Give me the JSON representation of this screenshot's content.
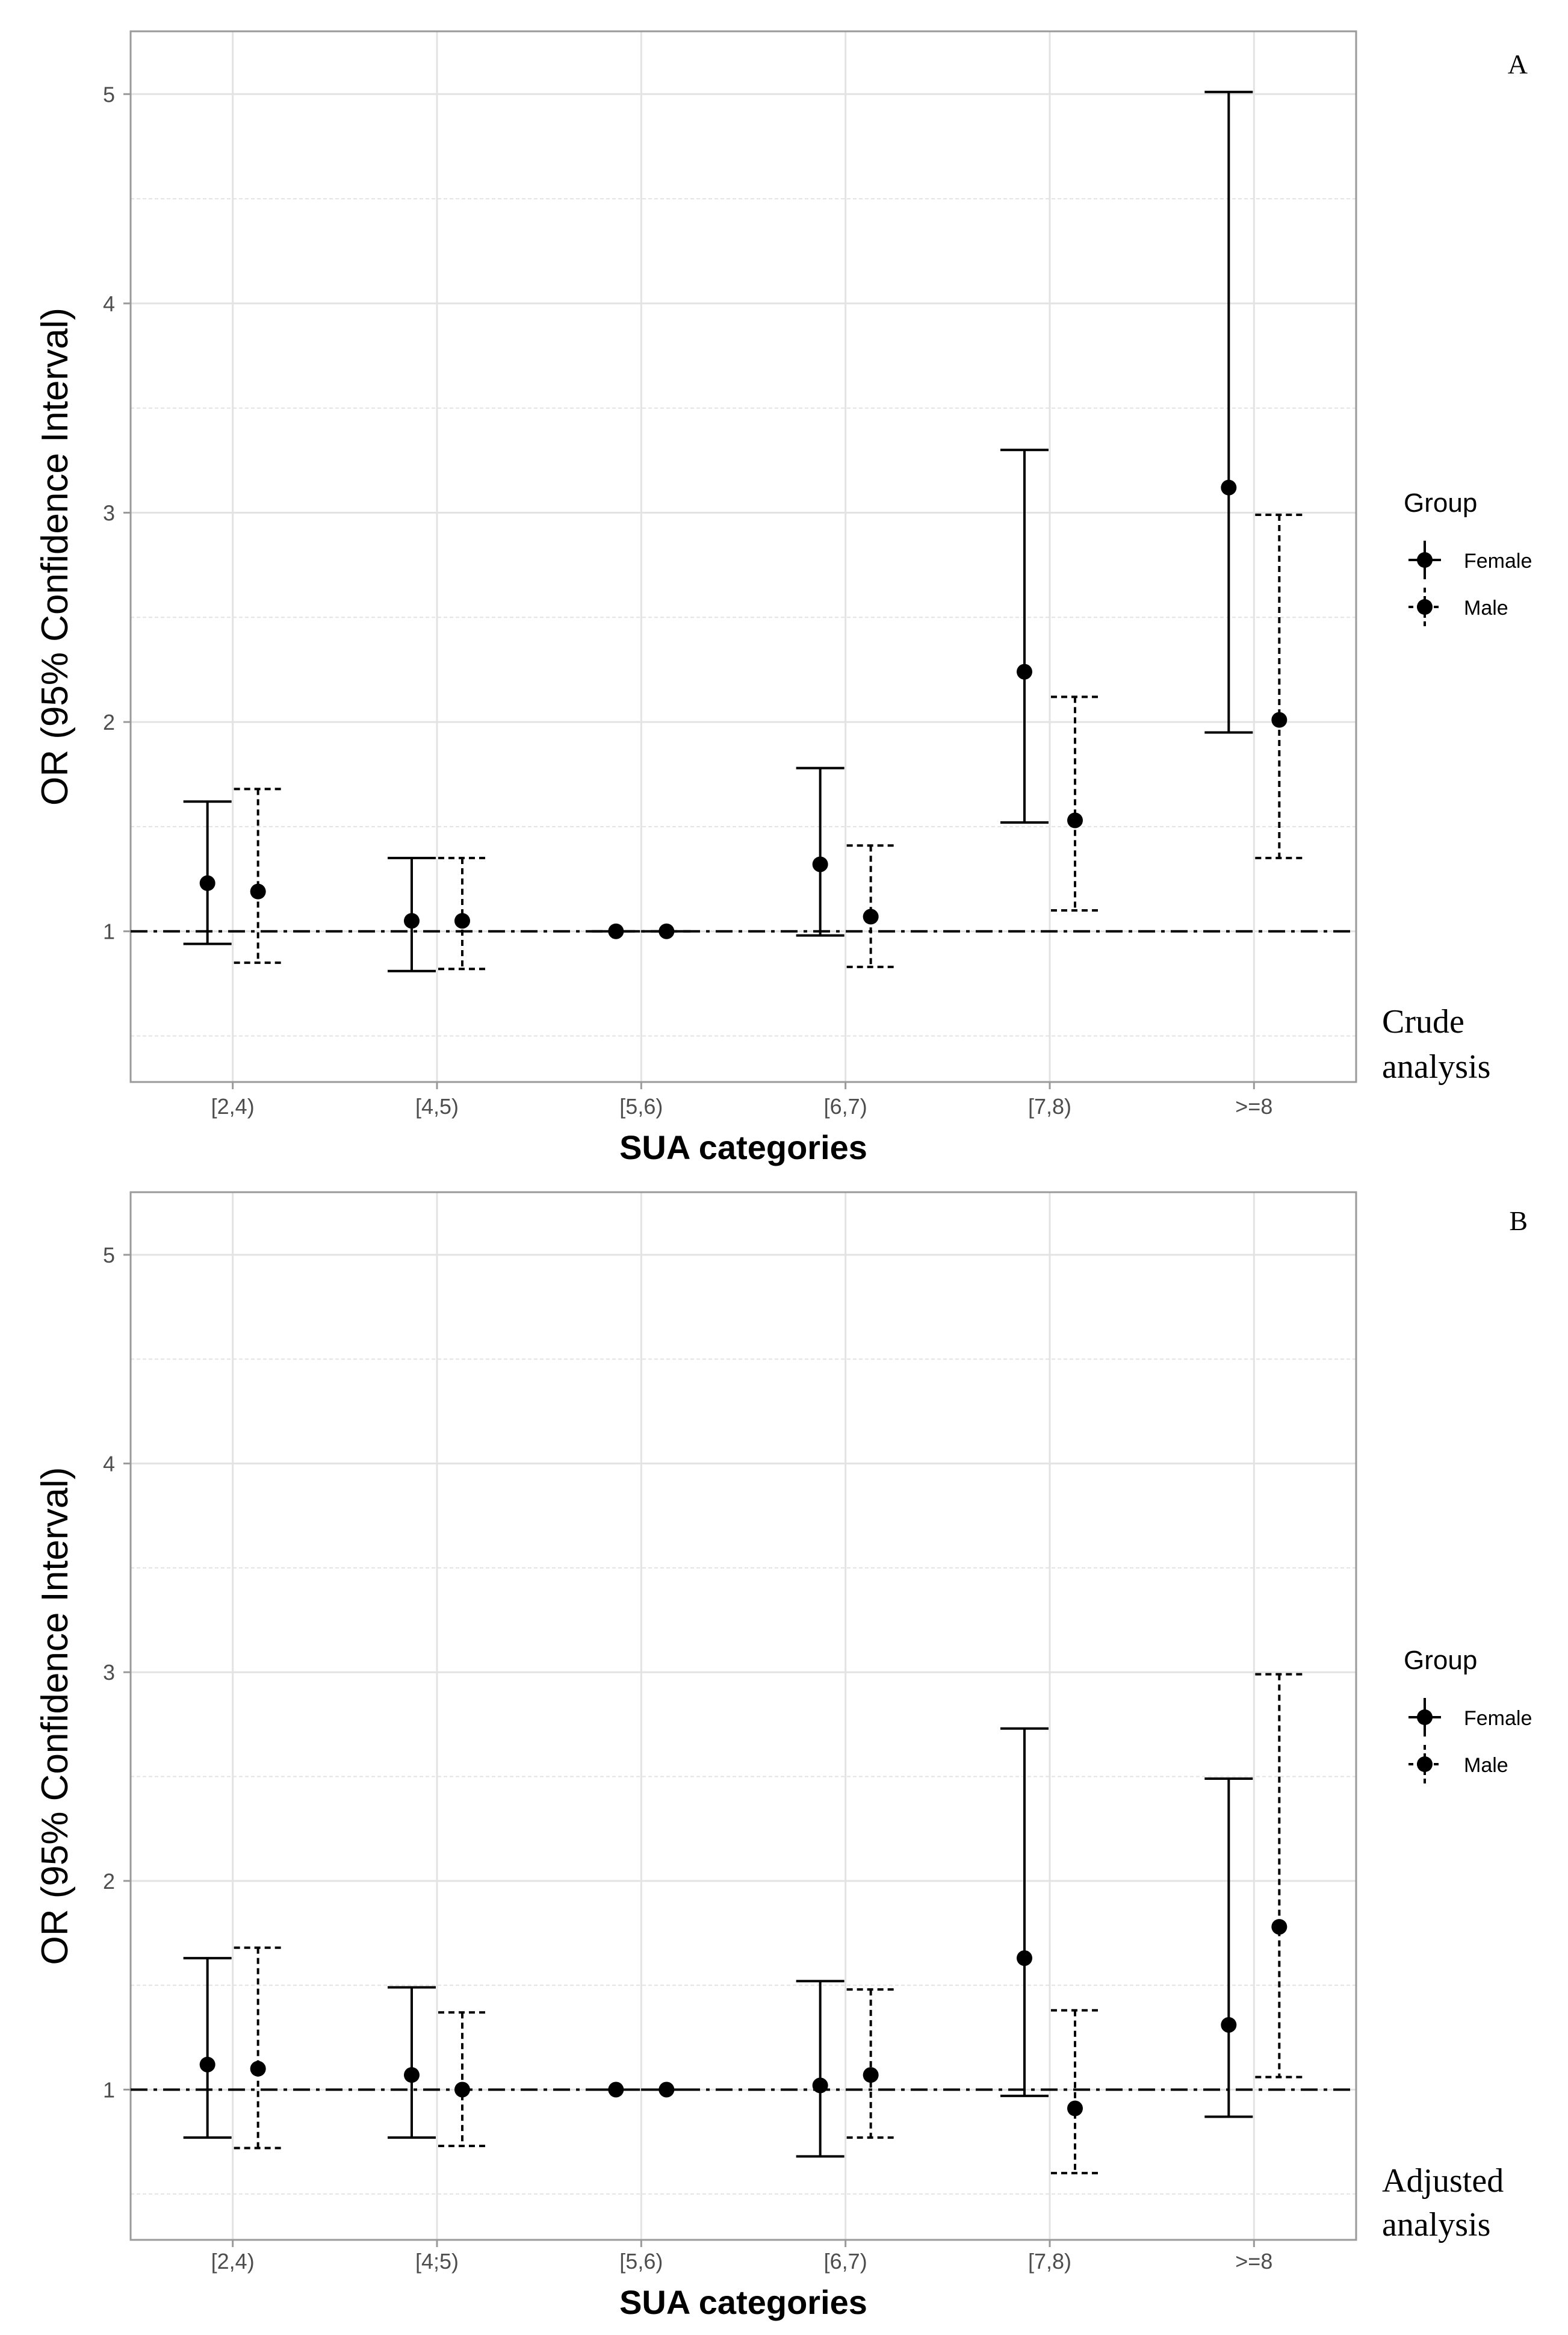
{
  "chart_data": [
    {
      "type": "errorbar",
      "panel_label": "A",
      "analysis_label_line1": "Crude",
      "analysis_label_line2": "analysis",
      "xlabel": "SUA categories",
      "ylabel": "OR (95% Confidence Interval)",
      "categories": [
        "[2,4)",
        "[4,5)",
        "[5,6)",
        "[6,7)",
        "[7,8)",
        ">=8"
      ],
      "ylim": [
        0.28,
        5.3
      ],
      "yticks": [
        1,
        2,
        3,
        4,
        5
      ],
      "reference_line": 1,
      "legend_title": "Group",
      "series": [
        {
          "name": "Female",
          "linestyle": "solid",
          "or": [
            1.23,
            1.05,
            1.0,
            1.32,
            2.24,
            3.12
          ],
          "lower": [
            0.94,
            0.81,
            1.0,
            0.98,
            1.52,
            1.95
          ],
          "upper": [
            1.62,
            1.35,
            1.0,
            1.78,
            3.3,
            5.01
          ]
        },
        {
          "name": "Male",
          "linestyle": "dashed",
          "or": [
            1.19,
            1.05,
            1.0,
            1.07,
            1.53,
            2.01
          ],
          "lower": [
            0.85,
            0.82,
            1.0,
            0.83,
            1.1,
            1.35
          ],
          "upper": [
            1.68,
            1.35,
            1.0,
            1.41,
            2.12,
            2.99
          ]
        }
      ]
    },
    {
      "type": "errorbar",
      "panel_label": "B",
      "analysis_label_line1": "Adjusted",
      "analysis_label_line2": "analysis",
      "xlabel": "SUA categories",
      "ylabel": "OR (95% Confidence Interval)",
      "categories": [
        "[2,4)",
        "[4;5)",
        "[5,6)",
        "[6,7)",
        "[7,8)",
        ">=8"
      ],
      "ylim": [
        0.28,
        5.3
      ],
      "yticks": [
        1,
        2,
        3,
        4,
        5
      ],
      "reference_line": 1,
      "legend_title": "Group",
      "series": [
        {
          "name": "Female",
          "linestyle": "solid",
          "or": [
            1.12,
            1.07,
            1.0,
            1.02,
            1.63,
            1.31
          ],
          "lower": [
            0.77,
            0.77,
            1.0,
            0.68,
            0.97,
            0.87
          ],
          "upper": [
            1.63,
            1.49,
            1.0,
            1.52,
            2.73,
            2.49
          ]
        },
        {
          "name": "Male",
          "linestyle": "dashed",
          "or": [
            1.1,
            1.0,
            1.0,
            1.07,
            0.91,
            1.78
          ],
          "lower": [
            0.72,
            0.73,
            1.0,
            0.77,
            0.6,
            1.06
          ],
          "upper": [
            1.68,
            1.37,
            1.0,
            1.48,
            1.38,
            2.99
          ]
        }
      ]
    }
  ],
  "colors": {
    "ink": "#000000",
    "grid": "#e3e3e3",
    "frame": "#9a9a9a",
    "tick_text": "#4d4d4d"
  }
}
